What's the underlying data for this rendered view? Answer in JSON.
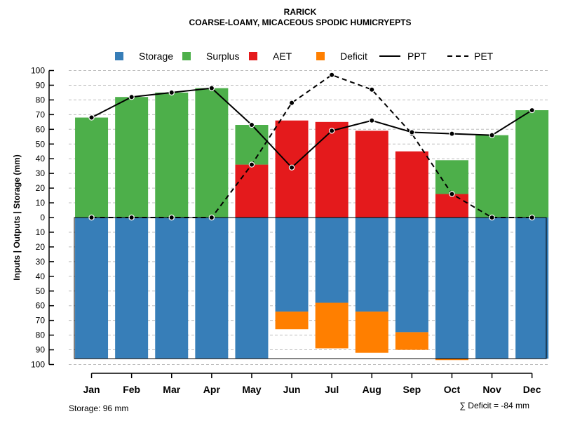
{
  "chart_data": {
    "type": "bar",
    "title": "RARICK",
    "subtitle": "COARSE-LOAMY, MICACEOUS SPODIC HUMICRYEPTS",
    "ylabel": "Inputs | Outputs | Storage    (mm)",
    "ylim": [
      -100,
      100
    ],
    "y_ticks": [
      100,
      90,
      80,
      70,
      60,
      50,
      40,
      30,
      20,
      10,
      0,
      10,
      20,
      30,
      40,
      50,
      60,
      70,
      80,
      90,
      100
    ],
    "categories": [
      "Jan",
      "Feb",
      "Mar",
      "Apr",
      "May",
      "Jun",
      "Jul",
      "Aug",
      "Sep",
      "Oct",
      "Nov",
      "Dec"
    ],
    "legend": {
      "placement": "top",
      "entries": [
        {
          "label": "Storage",
          "kind": "box",
          "color": "#377EB8"
        },
        {
          "label": "Surplus",
          "kind": "box",
          "color": "#4DAF4A"
        },
        {
          "label": "AET",
          "kind": "box",
          "color": "#E41A1C"
        },
        {
          "label": "Deficit",
          "kind": "box",
          "color": "#FF7F00"
        },
        {
          "label": "PPT",
          "kind": "solid-line",
          "color": "#000000"
        },
        {
          "label": "PET",
          "kind": "dashed-line",
          "color": "#000000"
        }
      ]
    },
    "series": [
      {
        "name": "AET",
        "color": "#E41A1C",
        "values": [
          0,
          0,
          0,
          0,
          36,
          66,
          65,
          59,
          45,
          16,
          0,
          0
        ]
      },
      {
        "name": "Surplus",
        "color": "#4DAF4A",
        "values": [
          68,
          82,
          85,
          88,
          27,
          0,
          0,
          0,
          0,
          23,
          56,
          73
        ]
      },
      {
        "name": "Storage",
        "color": "#377EB8",
        "values": [
          96,
          96,
          96,
          96,
          96,
          64,
          58,
          64,
          78,
          96,
          96,
          96
        ]
      },
      {
        "name": "Deficit",
        "color": "#FF7F00",
        "values": [
          0,
          0,
          0,
          0,
          0,
          12,
          31,
          28,
          12,
          1,
          0,
          0
        ]
      },
      {
        "name": "PPT",
        "color": "#000000",
        "values": [
          68,
          82,
          85,
          88,
          63,
          34,
          59,
          66,
          58,
          57,
          56,
          73
        ]
      },
      {
        "name": "PET",
        "color": "#000000",
        "values": [
          0,
          0,
          0,
          0,
          36,
          78,
          97,
          87,
          57,
          16,
          0,
          0
        ]
      }
    ],
    "grid": true
  },
  "footer": {
    "storage_note": "Storage: 96 mm",
    "deficit_note": "∑ Deficit = -84 mm"
  }
}
